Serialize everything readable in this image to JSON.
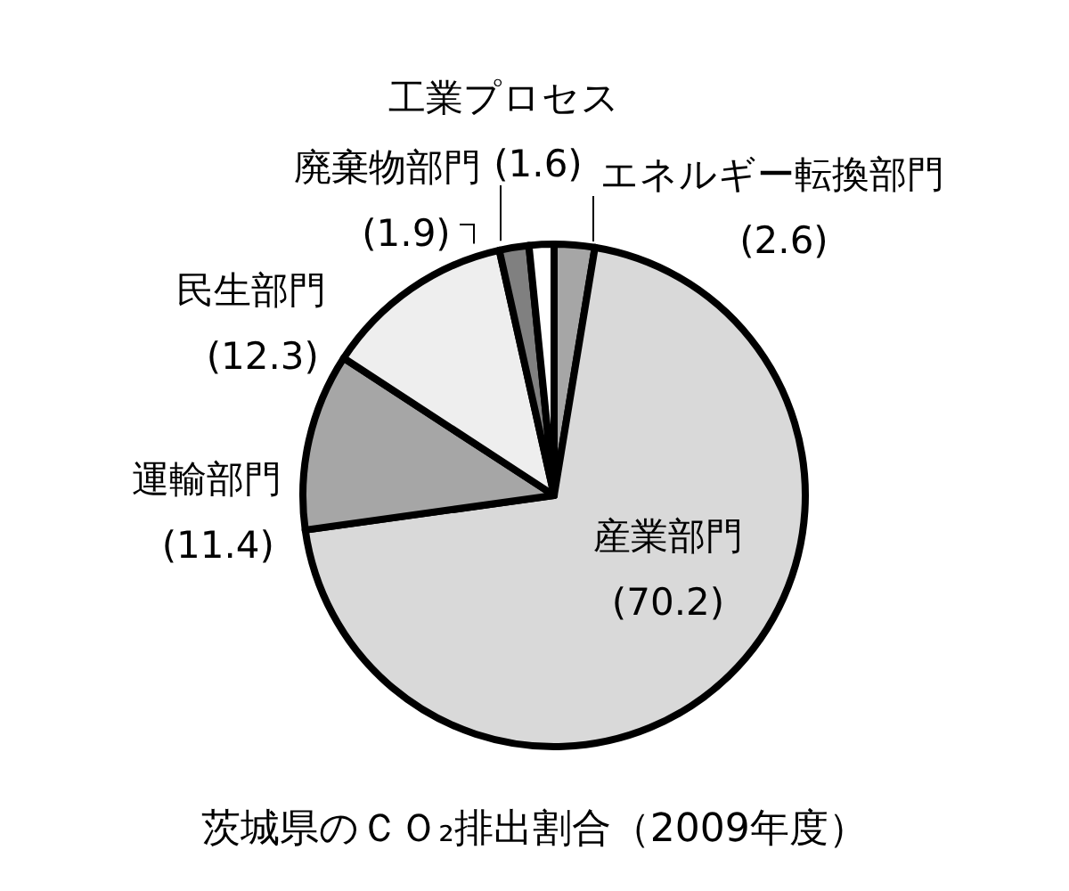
{
  "chart_data": {
    "type": "pie",
    "title": "茨城県のＣＯ₂排出割合（2009年度）",
    "categories": [
      "エネルギー転換部門",
      "産業部門",
      "運輸部門",
      "民生部門",
      "廃棄物部門",
      "工業プロセス"
    ],
    "values": [
      2.6,
      70.2,
      11.4,
      12.3,
      1.9,
      1.6
    ],
    "colors": [
      "#a6a6a6",
      "#d9d9d9",
      "#a6a6a6",
      "#eeeeee",
      "#808080",
      "#ffffff"
    ],
    "data_labels": true,
    "value_labels": [
      "(2.6)",
      "(70.2)",
      "(11.4)",
      "(12.3)",
      "(1.9)",
      "(1.6)"
    ]
  }
}
